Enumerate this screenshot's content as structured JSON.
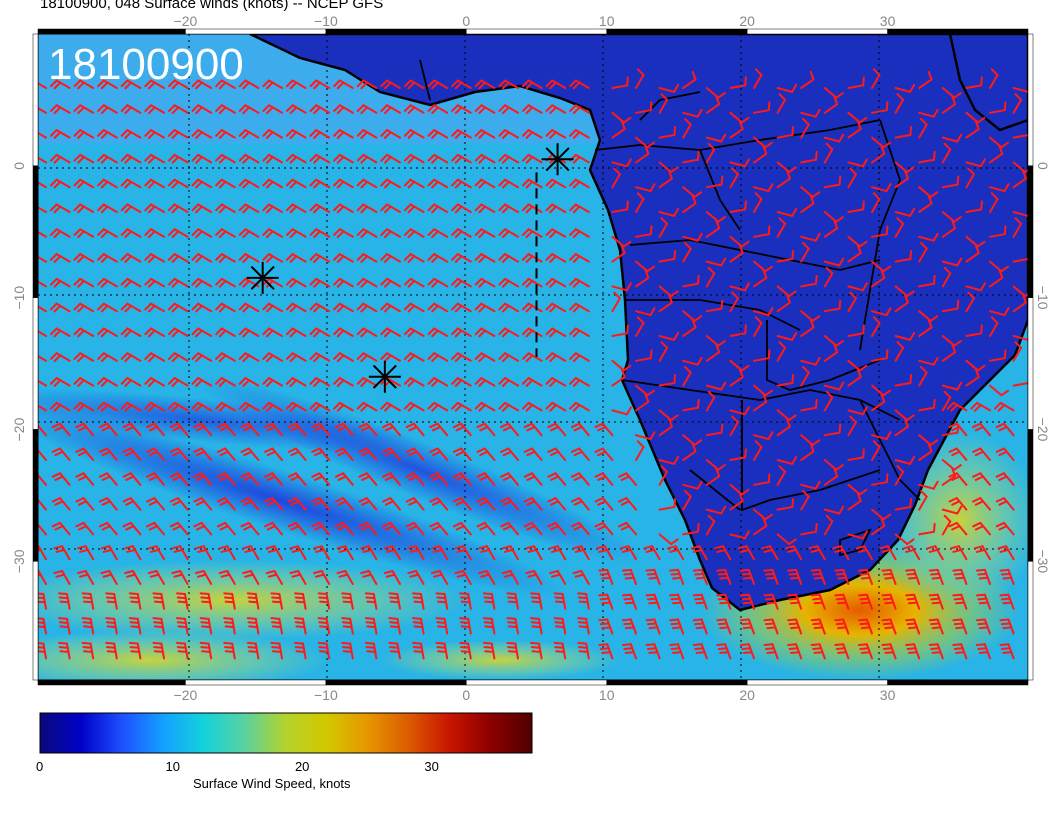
{
  "title": "18100900, 048 Surface winds (knots) -- NCEP GFS",
  "stamp": "18100900",
  "colorbar": {
    "title": "Surface Wind Speed, knots",
    "ticks": [
      "0",
      "10",
      "20",
      "30"
    ],
    "tick_values": [
      0,
      10,
      20,
      30
    ],
    "range": [
      0,
      38
    ],
    "stops": [
      "#0a0a7a",
      "#0000c8",
      "#1e50ff",
      "#14a0ff",
      "#14d2dc",
      "#5ad2a0",
      "#b4d22a",
      "#d2c800",
      "#e69600",
      "#dc5a00",
      "#c81400",
      "#8c0000",
      "#500000"
    ]
  },
  "axes": {
    "lon_ticks": [
      "−20",
      "−10",
      "0",
      "10",
      "20",
      "30"
    ],
    "lon_values": [
      -20,
      -10,
      0,
      10,
      20,
      30
    ],
    "lat_ticks": [
      "0",
      "−10",
      "−20",
      "−30"
    ],
    "lat_values": [
      0,
      -10,
      -20,
      -30
    ],
    "lon_range": [
      -30.5,
      40
    ],
    "lat_range": [
      -39,
      10
    ]
  },
  "markers": [
    {
      "name": "storm-marker",
      "lon": 6.5,
      "lat": 0.5
    },
    {
      "name": "storm-marker",
      "lon": -14.5,
      "lat": -8.5
    },
    {
      "name": "storm-marker",
      "lon": -5.8,
      "lat": -16.0
    }
  ],
  "track": {
    "lon": 5.0,
    "lat": [
      -0.5,
      -14.5
    ]
  },
  "colors": {
    "barb": "#ff1a1a",
    "coast": "#000000",
    "grid": "#000000",
    "ocean": "#1ea8e6",
    "land": "#1424b4"
  }
}
